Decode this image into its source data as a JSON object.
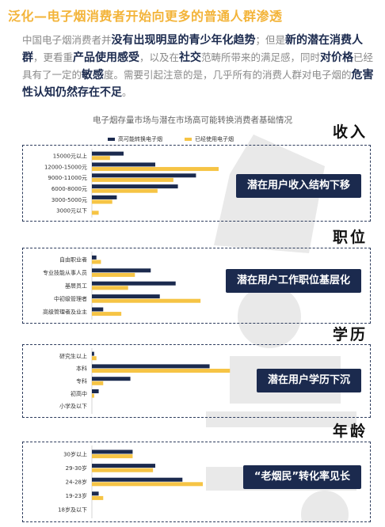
{
  "page": {
    "title": "泛化—电子烟消费者开始向更多的普通人群渗透",
    "intro_segments": [
      {
        "t": "中国电子烟消费者并",
        "b": false
      },
      {
        "t": "没有出现明显的青少年化趋势",
        "b": true
      },
      {
        "t": "；但是",
        "b": false
      },
      {
        "t": "新的潜在消费人群",
        "b": true
      },
      {
        "t": "，更看重",
        "b": false
      },
      {
        "t": "产品使用感受",
        "b": true
      },
      {
        "t": "，以及在",
        "b": false
      },
      {
        "t": "社交",
        "b": true
      },
      {
        "t": "范畴所带来的满足感，同时",
        "b": false
      },
      {
        "t": "对价格",
        "b": true
      },
      {
        "t": "已经具有了一定的",
        "b": false
      },
      {
        "t": "敏感",
        "b": true
      },
      {
        "t": "度。需要引起注意的是，几乎所有的消费人群对电子烟的",
        "b": false
      },
      {
        "t": "危害性认知仍然存在不足",
        "b": true
      },
      {
        "t": "。",
        "b": false
      }
    ],
    "chart_title": "电子烟存量市场与潜在市场高可能转换消费者基础情况",
    "colors": {
      "navy": "#1b2a4e",
      "gold": "#f6c445",
      "title_gold": "#f3b43a"
    }
  },
  "chart_data": [
    {
      "type": "bar",
      "orientation": "horizontal",
      "heading": "收入",
      "badge": "潜在用户收入结构下移",
      "categories": [
        "15000元以上",
        "12000-15000元",
        "9000-11000元",
        "6000-8000元",
        "3000-5000元",
        "3000元以下"
      ],
      "series": [
        {
          "name": "高可能转换电子烟",
          "color": "#1b2a4e",
          "values": [
            14,
            28,
            46,
            38,
            11,
            0
          ]
        },
        {
          "name": "已经使用电子烟",
          "color": "#f6c445",
          "values": [
            8,
            56,
            36,
            29,
            9,
            3
          ]
        }
      ],
      "xlim": [
        0,
        70
      ]
    },
    {
      "type": "bar",
      "orientation": "horizontal",
      "heading": "职位",
      "badge": "潜在用户工作职位基层化",
      "categories": [
        "自由职业者",
        "专业技能从事人员",
        "基层员工",
        "中初级管理者",
        "高级管理者及业主"
      ],
      "series": [
        {
          "name": "高可能转换电子烟",
          "color": "#1b2a4e",
          "values": [
            2,
            26,
            37,
            30,
            5
          ]
        },
        {
          "name": "已经使用电子烟",
          "color": "#f6c445",
          "values": [
            4,
            19,
            16,
            48,
            13
          ]
        }
      ],
      "xlim": [
        0,
        70
      ]
    },
    {
      "type": "bar",
      "orientation": "horizontal",
      "heading": "学历",
      "badge": "潜在用户学历下沉",
      "categories": [
        "研究生以上",
        "本科",
        "专科",
        "初高中",
        "小学及以下"
      ],
      "series": [
        {
          "name": "高可能转换电子烟",
          "color": "#1b2a4e",
          "values": [
            1,
            52,
            17,
            3,
            0
          ]
        },
        {
          "name": "已经使用电子烟",
          "color": "#f6c445",
          "values": [
            2,
            61,
            5,
            1,
            0
          ]
        }
      ],
      "xlim": [
        0,
        70
      ]
    },
    {
      "type": "bar",
      "orientation": "horizontal",
      "heading": "年龄",
      "badge": "“老烟民”转化率见长",
      "categories": [
        "30岁以上",
        "29-30岁",
        "24-28岁",
        "19-23岁",
        "18岁及以下"
      ],
      "series": [
        {
          "name": "高可能转换电子烟",
          "color": "#1b2a4e",
          "values": [
            18,
            28,
            40,
            3,
            0
          ]
        },
        {
          "name": "已经使用电子烟",
          "color": "#f6c445",
          "values": [
            18,
            27,
            49,
            5,
            0
          ]
        }
      ],
      "xlim": [
        0,
        70
      ]
    }
  ]
}
